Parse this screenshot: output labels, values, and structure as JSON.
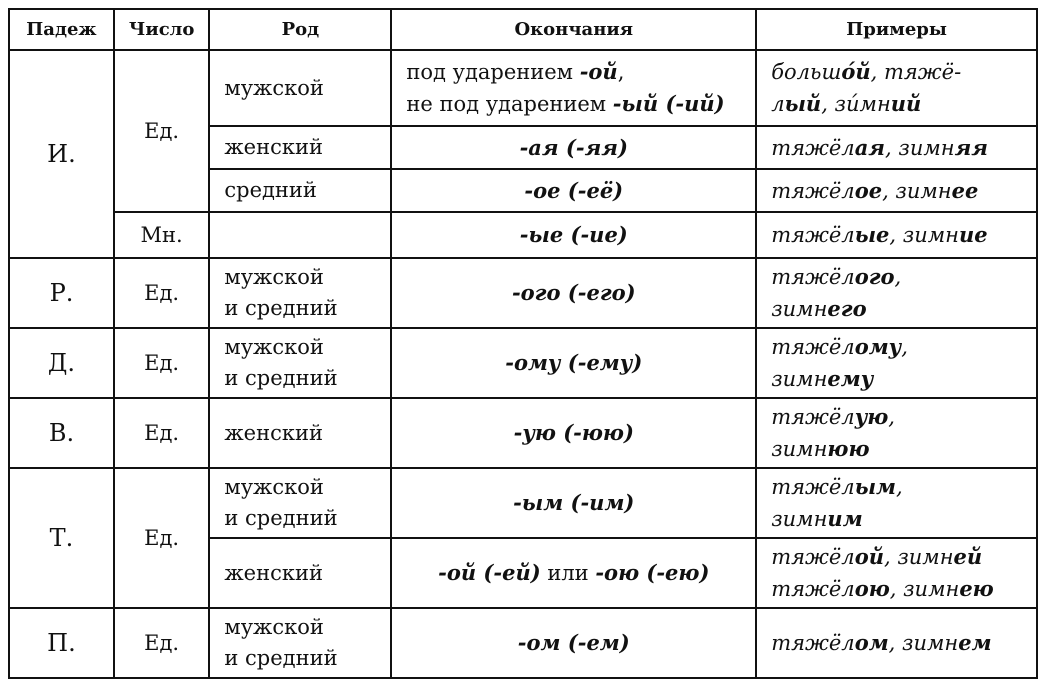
{
  "headers": [
    "Падеж",
    "Число",
    "Род",
    "Окончания",
    "Примеры"
  ],
  "cases": {
    "nom": "И.",
    "gen": "Р.",
    "dat": "Д.",
    "acc": "В.",
    "ins": "Т.",
    "pre": "П."
  },
  "numbers": {
    "sg": "Ед.",
    "pl": "Мн."
  },
  "genders": {
    "masc": "мужской",
    "fem": "женский",
    "neut": "средний",
    "masc_neut": "мужской\nи средний"
  },
  "endings": {
    "nom_masc": [
      [
        "под ударением ",
        "n"
      ],
      [
        "-ой",
        "b"
      ],
      [
        ",\nне под ударением ",
        "n"
      ],
      [
        "-ый (-ий)",
        "b"
      ]
    ],
    "nom_fem": [
      [
        "-ая (-яя)",
        "b"
      ]
    ],
    "nom_neut": [
      [
        "-ое (-её)",
        "b"
      ]
    ],
    "nom_pl": [
      [
        "-ые (-ие)",
        "b"
      ]
    ],
    "gen": [
      [
        "-ого (-его)",
        "b"
      ]
    ],
    "dat": [
      [
        "-ому (-ему)",
        "b"
      ]
    ],
    "acc": [
      [
        "-ую (-юю)",
        "b"
      ]
    ],
    "ins_mn": [
      [
        "-ым (-им)",
        "b"
      ]
    ],
    "ins_f": [
      [
        "-ой (-ей)",
        "b"
      ],
      [
        " или ",
        "n"
      ],
      [
        "-ою (-ею)",
        "b"
      ]
    ],
    "pre": [
      [
        "-ом (-ем)",
        "b"
      ]
    ]
  },
  "examples": {
    "nom_masc": [
      [
        "больш",
        "i"
      ],
      [
        "о́й",
        "b"
      ],
      [
        ", тяжё-\nл",
        "i"
      ],
      [
        "ый",
        "b"
      ],
      [
        ", зи́мн",
        "i"
      ],
      [
        "ий",
        "b"
      ]
    ],
    "nom_fem": [
      [
        "тяжёл",
        "i"
      ],
      [
        "ая",
        "b"
      ],
      [
        ", зимн",
        "i"
      ],
      [
        "яя",
        "b"
      ]
    ],
    "nom_neut": [
      [
        "тяжёл",
        "i"
      ],
      [
        "ое",
        "b"
      ],
      [
        ", зимн",
        "i"
      ],
      [
        "ее",
        "b"
      ]
    ],
    "nom_pl": [
      [
        "тяжёл",
        "i"
      ],
      [
        "ые",
        "b"
      ],
      [
        ", зимн",
        "i"
      ],
      [
        "ие",
        "b"
      ]
    ],
    "gen": [
      [
        "тяжёл",
        "i"
      ],
      [
        "ого",
        "b"
      ],
      [
        ",\nзимн",
        "i"
      ],
      [
        "его",
        "b"
      ]
    ],
    "dat": [
      [
        "тяжёл",
        "i"
      ],
      [
        "ому",
        "b"
      ],
      [
        ",\nзимн",
        "i"
      ],
      [
        "ему",
        "b"
      ]
    ],
    "acc": [
      [
        "тяжёл",
        "i"
      ],
      [
        "ую",
        "b"
      ],
      [
        ",\nзимн",
        "i"
      ],
      [
        "юю",
        "b"
      ]
    ],
    "ins_mn": [
      [
        "тяжёл",
        "i"
      ],
      [
        "ым",
        "b"
      ],
      [
        ",\nзимн",
        "i"
      ],
      [
        "им",
        "b"
      ]
    ],
    "ins_f": [
      [
        "тяжёл",
        "i"
      ],
      [
        "ой",
        "b"
      ],
      [
        ", зимн",
        "i"
      ],
      [
        "ей",
        "b"
      ],
      [
        "\nтяжёл",
        "i"
      ],
      [
        "ою",
        "b"
      ],
      [
        ", зимн",
        "i"
      ],
      [
        "ею",
        "b"
      ]
    ],
    "pre": [
      [
        "тяжёл",
        "i"
      ],
      [
        "ом",
        "b"
      ],
      [
        ", зимн",
        "i"
      ],
      [
        "ем",
        "b"
      ]
    ]
  }
}
